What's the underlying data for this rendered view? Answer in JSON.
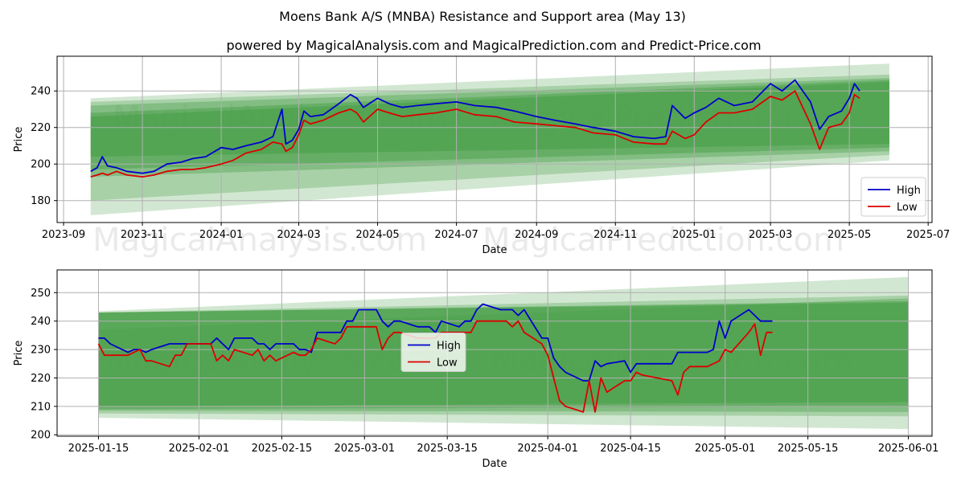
{
  "title": "Moens Bank A/S (MNBA) Resistance and Support area (May 13)",
  "subtitle": "powered by MagicalAnalysis.com and MagicalPrediction.com and Predict-Price.com",
  "watermarks": [
    "MagicalAnalysis.com",
    "MagicalPrediction.com"
  ],
  "colors": {
    "high": "#0000cc",
    "low": "#dd0000",
    "band": "#4a9f4a",
    "grid": "#b0b0b0"
  },
  "chart_data": [
    {
      "type": "line",
      "xlabel": "Date",
      "ylabel": "Price",
      "legend": "lower-right",
      "grid": true,
      "xlim": [
        "2023-08-27",
        "2025-07-04"
      ],
      "ylim": [
        168,
        259
      ],
      "x_ticks": [
        "2023-09",
        "2023-11",
        "2024-01",
        "2024-03",
        "2024-05",
        "2024-07",
        "2024-09",
        "2024-11",
        "2025-01",
        "2025-03",
        "2025-05",
        "2025-07"
      ],
      "y_ticks": [
        180,
        200,
        220,
        240
      ],
      "bands": [
        {
          "x": [
            "2023-09-22",
            "2025-06-01"
          ],
          "upper": [
            236,
            255
          ],
          "lower": [
            172,
            202
          ]
        },
        {
          "x": [
            "2023-09-22",
            "2025-06-01"
          ],
          "upper": [
            234,
            249
          ],
          "lower": [
            180,
            205
          ]
        },
        {
          "x": [
            "2023-09-22",
            "2025-06-01"
          ],
          "upper": [
            232,
            247
          ],
          "lower": [
            193,
            207
          ]
        },
        {
          "x": [
            "2023-09-22",
            "2025-06-01"
          ],
          "upper": [
            228,
            246
          ],
          "lower": [
            197,
            209
          ]
        },
        {
          "x": [
            "2023-09-22",
            "2025-06-01"
          ],
          "upper": [
            226,
            245
          ],
          "lower": [
            204,
            211
          ]
        }
      ],
      "series": [
        {
          "name": "High",
          "x": [
            "2023-09-22",
            "2023-09-27",
            "2023-10-01",
            "2023-10-05",
            "2023-10-12",
            "2023-10-20",
            "2023-11-01",
            "2023-11-10",
            "2023-11-20",
            "2023-12-01",
            "2023-12-10",
            "2023-12-20",
            "2024-01-01",
            "2024-01-10",
            "2024-01-20",
            "2024-02-01",
            "2024-02-10",
            "2024-02-17",
            "2024-02-20",
            "2024-02-25",
            "2024-03-01",
            "2024-03-05",
            "2024-03-10",
            "2024-03-20",
            "2024-04-01",
            "2024-04-10",
            "2024-04-15",
            "2024-04-20",
            "2024-05-01",
            "2024-05-10",
            "2024-05-20",
            "2024-06-01",
            "2024-06-15",
            "2024-07-01",
            "2024-07-15",
            "2024-08-01",
            "2024-08-15",
            "2024-09-01",
            "2024-09-15",
            "2024-10-01",
            "2024-10-15",
            "2024-11-01",
            "2024-11-15",
            "2024-12-01",
            "2024-12-10",
            "2024-12-15",
            "2024-12-25",
            "2025-01-01",
            "2025-01-10",
            "2025-01-20",
            "2025-02-01",
            "2025-02-15",
            "2025-03-01",
            "2025-03-10",
            "2025-03-20",
            "2025-04-01",
            "2025-04-08",
            "2025-04-15",
            "2025-04-25",
            "2025-05-01",
            "2025-05-05",
            "2025-05-09"
          ],
          "values": [
            196,
            198,
            204,
            199,
            198,
            196,
            195,
            196,
            200,
            201,
            203,
            204,
            209,
            208,
            210,
            212,
            215,
            230,
            211,
            213,
            219,
            229,
            226,
            227,
            233,
            238,
            236,
            231,
            236,
            233,
            231,
            232,
            233,
            234,
            232,
            231,
            229,
            226,
            224,
            222,
            220,
            218,
            215,
            214,
            215,
            232,
            225,
            228,
            231,
            236,
            232,
            234,
            244,
            240,
            246,
            234,
            219,
            226,
            229,
            236,
            244,
            240
          ]
        },
        {
          "name": "Low",
          "x": [
            "2023-09-22",
            "2023-09-27",
            "2023-10-01",
            "2023-10-05",
            "2023-10-12",
            "2023-10-20",
            "2023-11-01",
            "2023-11-10",
            "2023-11-20",
            "2023-12-01",
            "2023-12-10",
            "2023-12-20",
            "2024-01-01",
            "2024-01-10",
            "2024-01-20",
            "2024-02-01",
            "2024-02-10",
            "2024-02-17",
            "2024-02-20",
            "2024-02-25",
            "2024-03-01",
            "2024-03-05",
            "2024-03-10",
            "2024-03-20",
            "2024-04-01",
            "2024-04-10",
            "2024-04-15",
            "2024-04-20",
            "2024-05-01",
            "2024-05-10",
            "2024-05-20",
            "2024-06-01",
            "2024-06-15",
            "2024-07-01",
            "2024-07-15",
            "2024-08-01",
            "2024-08-15",
            "2024-09-01",
            "2024-09-15",
            "2024-10-01",
            "2024-10-15",
            "2024-11-01",
            "2024-11-15",
            "2024-12-01",
            "2024-12-10",
            "2024-12-15",
            "2024-12-25",
            "2025-01-01",
            "2025-01-10",
            "2025-01-20",
            "2025-02-01",
            "2025-02-15",
            "2025-03-01",
            "2025-03-10",
            "2025-03-20",
            "2025-04-01",
            "2025-04-08",
            "2025-04-15",
            "2025-04-25",
            "2025-05-01",
            "2025-05-05",
            "2025-05-09"
          ],
          "values": [
            193,
            194,
            195,
            194,
            196,
            194,
            193,
            194,
            196,
            197,
            197,
            198,
            200,
            202,
            206,
            208,
            212,
            211,
            207,
            209,
            216,
            224,
            222,
            224,
            228,
            230,
            228,
            223,
            230,
            228,
            226,
            227,
            228,
            230,
            227,
            226,
            223,
            222,
            221,
            220,
            217,
            216,
            212,
            211,
            211,
            218,
            214,
            216,
            223,
            228,
            228,
            230,
            237,
            235,
            240,
            222,
            208,
            220,
            222,
            228,
            238,
            236
          ]
        }
      ]
    },
    {
      "type": "line",
      "xlabel": "Date",
      "ylabel": "Price",
      "legend": "center",
      "grid": true,
      "xlim": [
        "2025-01-08",
        "2025-06-05"
      ],
      "ylim": [
        199.5,
        258
      ],
      "x_ticks": [
        "2025-01-15",
        "2025-02-01",
        "2025-02-15",
        "2025-03-01",
        "2025-03-15",
        "2025-04-01",
        "2025-04-15",
        "2025-05-01",
        "2025-05-15",
        "2025-06-01"
      ],
      "y_ticks": [
        200,
        210,
        220,
        230,
        240,
        250
      ],
      "bands": [
        {
          "x": [
            "2025-01-15",
            "2025-06-01"
          ],
          "upper": [
            243.5,
            255.5
          ],
          "lower": [
            206,
            202
          ]
        },
        {
          "x": [
            "2025-01-15",
            "2025-06-01"
          ],
          "upper": [
            243,
            249
          ],
          "lower": [
            207.5,
            206.5
          ]
        },
        {
          "x": [
            "2025-01-15",
            "2025-06-01"
          ],
          "upper": [
            237,
            248
          ],
          "lower": [
            208.5,
            208
          ]
        },
        {
          "x": [
            "2025-01-15",
            "2025-06-01"
          ],
          "upper": [
            243,
            247
          ],
          "lower": [
            209,
            210
          ]
        },
        {
          "x": [
            "2025-01-15",
            "2025-06-01"
          ],
          "upper": [
            243,
            246.5
          ],
          "lower": [
            210,
            211.5
          ]
        }
      ],
      "series": [
        {
          "name": "High",
          "x": [
            "2025-01-15",
            "2025-01-16",
            "2025-01-17",
            "2025-01-20",
            "2025-01-21",
            "2025-01-22",
            "2025-01-23",
            "2025-01-24",
            "2025-01-27",
            "2025-01-28",
            "2025-01-29",
            "2025-01-30",
            "2025-01-31",
            "2025-02-03",
            "2025-02-04",
            "2025-02-05",
            "2025-02-06",
            "2025-02-07",
            "2025-02-10",
            "2025-02-11",
            "2025-02-12",
            "2025-02-13",
            "2025-02-14",
            "2025-02-17",
            "2025-02-18",
            "2025-02-19",
            "2025-02-20",
            "2025-02-21",
            "2025-02-24",
            "2025-02-25",
            "2025-02-26",
            "2025-02-27",
            "2025-02-28",
            "2025-03-03",
            "2025-03-04",
            "2025-03-05",
            "2025-03-06",
            "2025-03-07",
            "2025-03-10",
            "2025-03-11",
            "2025-03-12",
            "2025-03-13",
            "2025-03-14",
            "2025-03-17",
            "2025-03-18",
            "2025-03-19",
            "2025-03-20",
            "2025-03-21",
            "2025-03-24",
            "2025-03-25",
            "2025-03-26",
            "2025-03-27",
            "2025-03-28",
            "2025-03-31",
            "2025-04-01",
            "2025-04-02",
            "2025-04-03",
            "2025-04-04",
            "2025-04-07",
            "2025-04-08",
            "2025-04-09",
            "2025-04-10",
            "2025-04-11",
            "2025-04-14",
            "2025-04-15",
            "2025-04-16",
            "2025-04-17",
            "2025-04-22",
            "2025-04-23",
            "2025-04-24",
            "2025-04-25",
            "2025-04-28",
            "2025-04-29",
            "2025-04-30",
            "2025-05-01",
            "2025-05-02",
            "2025-05-05",
            "2025-05-06",
            "2025-05-07",
            "2025-05-08",
            "2025-05-09"
          ],
          "values": [
            234,
            234,
            232,
            229,
            230,
            230,
            229,
            230,
            232,
            232,
            232,
            232,
            232,
            232,
            234,
            232,
            230,
            234,
            234,
            232,
            232,
            230,
            232,
            232,
            230,
            230,
            229,
            236,
            236,
            236,
            240,
            240,
            244,
            244,
            240,
            238,
            240,
            240,
            238,
            238,
            238,
            236,
            240,
            238,
            240,
            240,
            244,
            246,
            244,
            244,
            244,
            242,
            244,
            234,
            234,
            227,
            224,
            222,
            219,
            219,
            226,
            224,
            225,
            226,
            222,
            225,
            225,
            225,
            229,
            229,
            229,
            229,
            230,
            240,
            234,
            240,
            244,
            242,
            240,
            240,
            240
          ]
        },
        {
          "name": "Low",
          "x": [
            "2025-01-15",
            "2025-01-16",
            "2025-01-17",
            "2025-01-20",
            "2025-01-21",
            "2025-01-22",
            "2025-01-23",
            "2025-01-24",
            "2025-01-27",
            "2025-01-28",
            "2025-01-29",
            "2025-01-30",
            "2025-01-31",
            "2025-02-03",
            "2025-02-04",
            "2025-02-05",
            "2025-02-06",
            "2025-02-07",
            "2025-02-10",
            "2025-02-11",
            "2025-02-12",
            "2025-02-13",
            "2025-02-14",
            "2025-02-17",
            "2025-02-18",
            "2025-02-19",
            "2025-02-20",
            "2025-02-21",
            "2025-02-24",
            "2025-02-25",
            "2025-02-26",
            "2025-02-27",
            "2025-02-28",
            "2025-03-03",
            "2025-03-04",
            "2025-03-05",
            "2025-03-06",
            "2025-03-07",
            "2025-03-10",
            "2025-03-11",
            "2025-03-12",
            "2025-03-13",
            "2025-03-14",
            "2025-03-17",
            "2025-03-18",
            "2025-03-19",
            "2025-03-20",
            "2025-03-21",
            "2025-03-24",
            "2025-03-25",
            "2025-03-26",
            "2025-03-27",
            "2025-03-28",
            "2025-03-31",
            "2025-04-01",
            "2025-04-02",
            "2025-04-03",
            "2025-04-04",
            "2025-04-07",
            "2025-04-08",
            "2025-04-09",
            "2025-04-10",
            "2025-04-11",
            "2025-04-14",
            "2025-04-15",
            "2025-04-16",
            "2025-04-17",
            "2025-04-22",
            "2025-04-23",
            "2025-04-24",
            "2025-04-25",
            "2025-04-28",
            "2025-04-29",
            "2025-04-30",
            "2025-05-01",
            "2025-05-02",
            "2025-05-05",
            "2025-05-06",
            "2025-05-07",
            "2025-05-08",
            "2025-05-09"
          ],
          "values": [
            232,
            228,
            228,
            228,
            229,
            230,
            226,
            226,
            224,
            228,
            228,
            232,
            232,
            232,
            226,
            228,
            226,
            230,
            228,
            230,
            226,
            228,
            226,
            229,
            228,
            228,
            230,
            234,
            232,
            234,
            238,
            238,
            238,
            238,
            230,
            234,
            236,
            236,
            234,
            234,
            234,
            234,
            236,
            236,
            236,
            236,
            240,
            240,
            240,
            240,
            238,
            240,
            236,
            232,
            228,
            220,
            212,
            210,
            208,
            219,
            208,
            220,
            215,
            219,
            219,
            222,
            221,
            219,
            214,
            222,
            224,
            224,
            225,
            226,
            230,
            229,
            236,
            239,
            228,
            236,
            236
          ]
        }
      ]
    }
  ]
}
